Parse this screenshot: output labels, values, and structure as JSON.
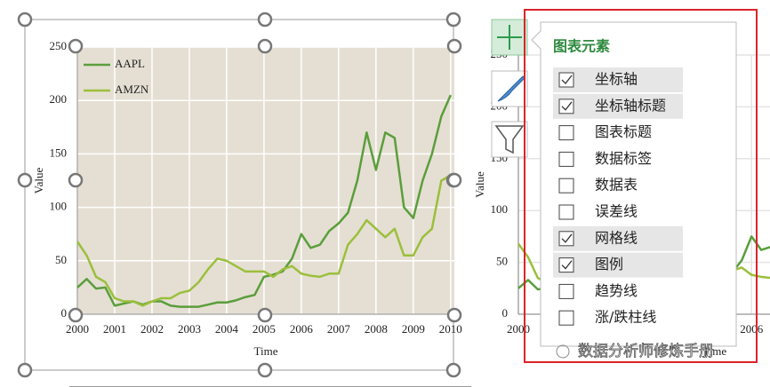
{
  "chart_data": {
    "type": "line",
    "xlabel": "Time",
    "ylabel": "Value",
    "x": [
      2000,
      2000.25,
      2000.5,
      2000.75,
      2001,
      2001.25,
      2001.5,
      2001.75,
      2002,
      2002.25,
      2002.5,
      2002.75,
      2003,
      2003.25,
      2003.5,
      2003.75,
      2004,
      2004.25,
      2004.5,
      2004.75,
      2005,
      2005.25,
      2005.5,
      2005.75,
      2006,
      2006.25,
      2006.5,
      2006.75,
      2007,
      2007.25,
      2007.5,
      2007.75,
      2008,
      2008.25,
      2008.5,
      2008.75,
      2009,
      2009.25,
      2009.5,
      2009.75,
      2010
    ],
    "series": [
      {
        "name": "AAPL",
        "color": "#5b9e3c",
        "values": [
          25,
          33,
          24,
          25,
          8,
          10,
          12,
          9,
          12,
          12,
          8,
          7,
          7,
          7,
          9,
          11,
          11,
          13,
          16,
          18,
          35,
          37,
          40,
          52,
          75,
          62,
          65,
          78,
          85,
          95,
          125,
          170,
          135,
          170,
          165,
          100,
          90,
          125,
          150,
          185,
          205
        ]
      },
      {
        "name": "AMZN",
        "color": "#9bbf3c",
        "values": [
          68,
          55,
          35,
          30,
          15,
          12,
          12,
          8,
          12,
          15,
          15,
          20,
          22,
          30,
          42,
          52,
          50,
          45,
          40,
          40,
          40,
          35,
          42,
          45,
          38,
          36,
          35,
          38,
          38,
          65,
          75,
          88,
          80,
          72,
          80,
          55,
          55,
          72,
          80,
          125,
          130
        ]
      }
    ],
    "xlim": [
      2000,
      2010.1
    ],
    "xticks": [
      2000,
      2001,
      2002,
      2003,
      2004,
      2005,
      2006,
      2007,
      2008,
      2009,
      2010
    ],
    "ylim": [
      0,
      250
    ],
    "yticks": [
      0,
      50,
      100,
      150,
      200,
      250
    ],
    "grid": true,
    "legend": "upper-left"
  },
  "panel": {
    "title": "图表元素",
    "items": [
      {
        "label": "坐标轴",
        "checked": true
      },
      {
        "label": "坐标轴标题",
        "checked": true
      },
      {
        "label": "图表标题",
        "checked": false
      },
      {
        "label": "数据标签",
        "checked": false
      },
      {
        "label": "数据表",
        "checked": false
      },
      {
        "label": "误差线",
        "checked": false
      },
      {
        "label": "网格线",
        "checked": true
      },
      {
        "label": "图例",
        "checked": true
      },
      {
        "label": "趋势线",
        "checked": false
      },
      {
        "label": "涨/跌柱线",
        "checked": false
      }
    ]
  },
  "watermark": "数据分析师修炼手册"
}
